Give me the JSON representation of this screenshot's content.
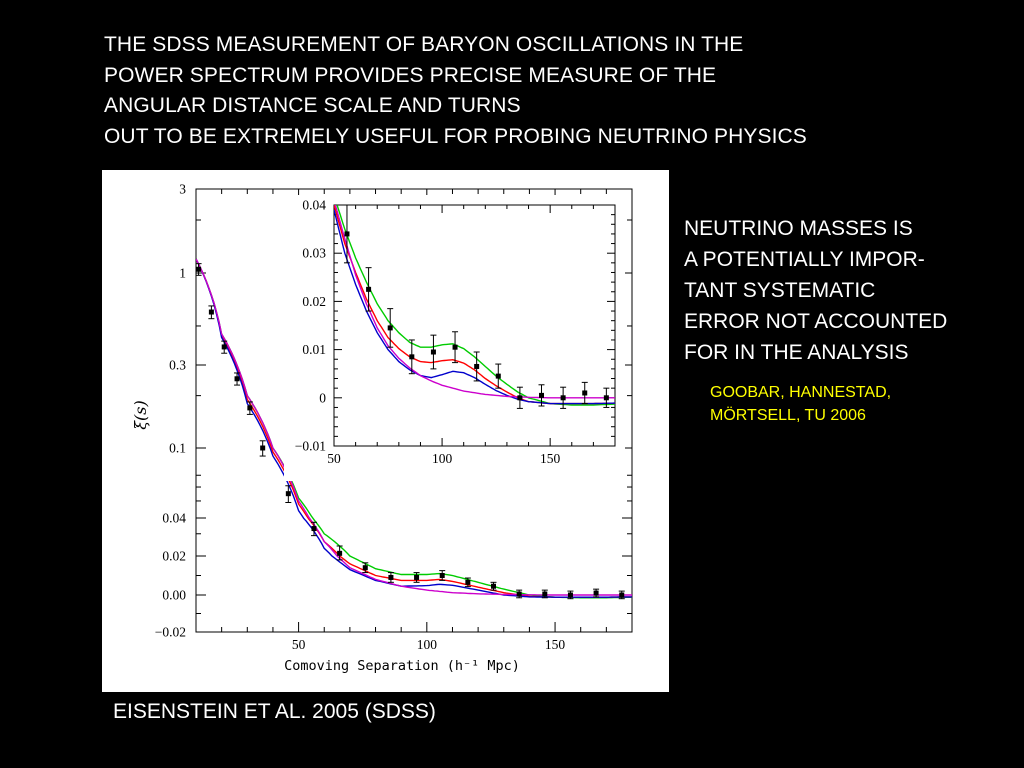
{
  "slide": {
    "title_lines": [
      "THE SDSS MEASUREMENT OF BARYON OSCILLATIONS IN THE",
      "POWER SPECTRUM PROVIDES PRECISE MEASURE OF THE",
      "ANGULAR DISTANCE SCALE AND TURNS",
      "OUT TO BE EXTREMELY USEFUL FOR PROBING NEUTRINO PHYSICS"
    ],
    "note_lines": [
      "NEUTRINO MASSES IS",
      "A POTENTIALLY IMPOR-",
      "TANT SYSTEMATIC",
      "ERROR  NOT ACCOUNTED",
      "FOR IN THE ANALYSIS"
    ],
    "credit_lines": [
      "GOOBAR, HANNESTAD,",
      "MÖRTSELL, TU 2006"
    ],
    "caption": "EISENSTEIN ET AL. 2005 (SDSS)",
    "colors": {
      "background": "#000000",
      "text": "#ffffff",
      "credit": "#ffff00"
    }
  },
  "chart_data": [
    {
      "type": "line",
      "scale_y": "nonlinear (log-like above, linear near zero)",
      "xlabel": "Comoving Separation (h⁻¹ Mpc)",
      "ylabel": "ξ(s)",
      "xlim": [
        10,
        180
      ],
      "ylim": [
        -0.02,
        3
      ],
      "x_ticks": [
        50,
        100,
        150
      ],
      "y_ticks": [
        "3",
        "1",
        "0.3",
        "0.1",
        "0.04",
        "0.02",
        "0.00",
        "−0.02"
      ],
      "points": {
        "x": [
          11,
          16,
          21,
          26,
          31,
          36,
          46,
          56,
          66,
          76,
          86,
          96,
          106,
          116,
          126,
          136,
          146,
          156,
          166,
          176
        ],
        "y": [
          1.05,
          0.6,
          0.38,
          0.25,
          0.17,
          0.1,
          0.055,
          0.033,
          0.021,
          0.014,
          0.009,
          0.009,
          0.01,
          0.0065,
          0.0045,
          0.0005,
          0.0005,
          0.0,
          0.001,
          0.0
        ],
        "err": [
          0.08,
          0.05,
          0.03,
          0.02,
          0.014,
          0.01,
          0.006,
          0.004,
          0.003,
          0.0025,
          0.0025,
          0.0025,
          0.0025,
          0.0022,
          0.002,
          0.002,
          0.002,
          0.002,
          0.002,
          0.002
        ]
      },
      "series": [
        {
          "color": "#00cc00",
          "x": [
            10,
            20,
            30,
            40,
            50,
            60,
            70,
            80,
            90,
            100,
            105,
            110,
            120,
            130,
            140,
            150,
            160,
            170,
            180
          ],
          "y": [
            1.2,
            0.45,
            0.2,
            0.1,
            0.052,
            0.03,
            0.02,
            0.0135,
            0.0105,
            0.0105,
            0.011,
            0.01,
            0.0065,
            0.003,
            0.0,
            -0.0012,
            -0.0015,
            -0.0015,
            -0.0012
          ]
        },
        {
          "color": "#ff0000",
          "x": [
            10,
            20,
            30,
            40,
            50,
            60,
            70,
            80,
            90,
            100,
            105,
            110,
            120,
            130,
            140,
            150,
            160,
            170,
            180
          ],
          "y": [
            1.2,
            0.44,
            0.19,
            0.095,
            0.048,
            0.026,
            0.016,
            0.01,
            0.0075,
            0.0075,
            0.008,
            0.007,
            0.004,
            0.0012,
            -0.0008,
            -0.0012,
            -0.0012,
            -0.0012,
            -0.001
          ]
        },
        {
          "color": "#0000cc",
          "x": [
            10,
            20,
            30,
            40,
            50,
            60,
            70,
            80,
            90,
            100,
            105,
            110,
            120,
            130,
            140,
            150,
            160,
            170,
            180
          ],
          "y": [
            1.2,
            0.43,
            0.18,
            0.09,
            0.044,
            0.023,
            0.013,
            0.0075,
            0.0045,
            0.0048,
            0.0055,
            0.005,
            0.0025,
            0.0,
            -0.001,
            -0.0012,
            -0.0012,
            -0.0012,
            -0.001
          ]
        },
        {
          "color": "#cc00cc",
          "x": [
            10,
            20,
            30,
            40,
            50,
            60,
            70,
            80,
            90,
            100,
            110,
            120,
            130,
            140,
            150,
            160,
            170,
            180
          ],
          "y": [
            1.2,
            0.45,
            0.2,
            0.1,
            0.05,
            0.026,
            0.014,
            0.008,
            0.0045,
            0.0025,
            0.0012,
            0.0006,
            0.0003,
            0.0001,
            0.0,
            0.0,
            0.0,
            0.0
          ]
        }
      ]
    },
    {
      "type": "line",
      "xlim": [
        50,
        180
      ],
      "ylim": [
        -0.01,
        0.04
      ],
      "x_ticks": [
        50,
        100,
        150
      ],
      "y_ticks": [
        "0.04",
        "0.03",
        "0.02",
        "0.01",
        "0",
        "−0.01"
      ],
      "points": {
        "x": [
          56,
          66,
          76,
          86,
          96,
          106,
          116,
          126,
          136,
          146,
          156,
          166,
          176
        ],
        "y": [
          0.034,
          0.0225,
          0.0145,
          0.0085,
          0.0095,
          0.0105,
          0.0065,
          0.0045,
          0.0,
          0.0005,
          0.0,
          0.001,
          0.0
        ],
        "err": [
          0.006,
          0.0045,
          0.004,
          0.0035,
          0.0035,
          0.0032,
          0.003,
          0.0025,
          0.0022,
          0.0022,
          0.0022,
          0.0022,
          0.002
        ]
      },
      "series": [
        {
          "color": "#00cc00",
          "x": [
            50,
            55,
            60,
            65,
            70,
            75,
            80,
            85,
            90,
            95,
            100,
            105,
            110,
            115,
            120,
            125,
            130,
            135,
            140,
            150,
            160,
            170,
            180
          ],
          "y": [
            0.042,
            0.035,
            0.029,
            0.024,
            0.0195,
            0.016,
            0.0135,
            0.0115,
            0.0105,
            0.0105,
            0.011,
            0.0112,
            0.0102,
            0.0085,
            0.0065,
            0.0045,
            0.0028,
            0.0012,
            0.0,
            -0.0012,
            -0.0015,
            -0.0015,
            -0.0013
          ]
        },
        {
          "color": "#ff0000",
          "x": [
            50,
            55,
            60,
            65,
            70,
            75,
            80,
            85,
            90,
            95,
            100,
            105,
            110,
            115,
            120,
            125,
            130,
            135,
            140,
            150,
            160,
            170,
            180
          ],
          "y": [
            0.04,
            0.032,
            0.026,
            0.0205,
            0.016,
            0.0125,
            0.0102,
            0.0085,
            0.0075,
            0.0073,
            0.0077,
            0.0079,
            0.0072,
            0.0058,
            0.004,
            0.0025,
            0.0012,
            0.0,
            -0.0008,
            -0.0012,
            -0.0012,
            -0.0012,
            -0.0011
          ]
        },
        {
          "color": "#0000cc",
          "x": [
            50,
            55,
            60,
            65,
            70,
            75,
            80,
            85,
            90,
            95,
            100,
            105,
            110,
            115,
            120,
            125,
            130,
            135,
            140,
            150,
            160,
            170,
            180
          ],
          "y": [
            0.039,
            0.03,
            0.0235,
            0.018,
            0.0135,
            0.01,
            0.0075,
            0.0058,
            0.0046,
            0.0042,
            0.0048,
            0.0055,
            0.0052,
            0.0042,
            0.0028,
            0.0015,
            0.0005,
            -0.0003,
            -0.0008,
            -0.0012,
            -0.0012,
            -0.0012,
            -0.0011
          ]
        },
        {
          "color": "#cc00cc",
          "x": [
            50,
            55,
            60,
            65,
            70,
            75,
            80,
            85,
            90,
            95,
            100,
            110,
            120,
            130,
            140,
            150,
            160,
            170,
            180
          ],
          "y": [
            0.041,
            0.033,
            0.0255,
            0.0195,
            0.0145,
            0.0108,
            0.0082,
            0.0062,
            0.0046,
            0.0035,
            0.0026,
            0.0014,
            0.0007,
            0.0003,
            0.0001,
            0.0,
            0.0,
            0.0,
            0.0
          ]
        }
      ]
    }
  ]
}
